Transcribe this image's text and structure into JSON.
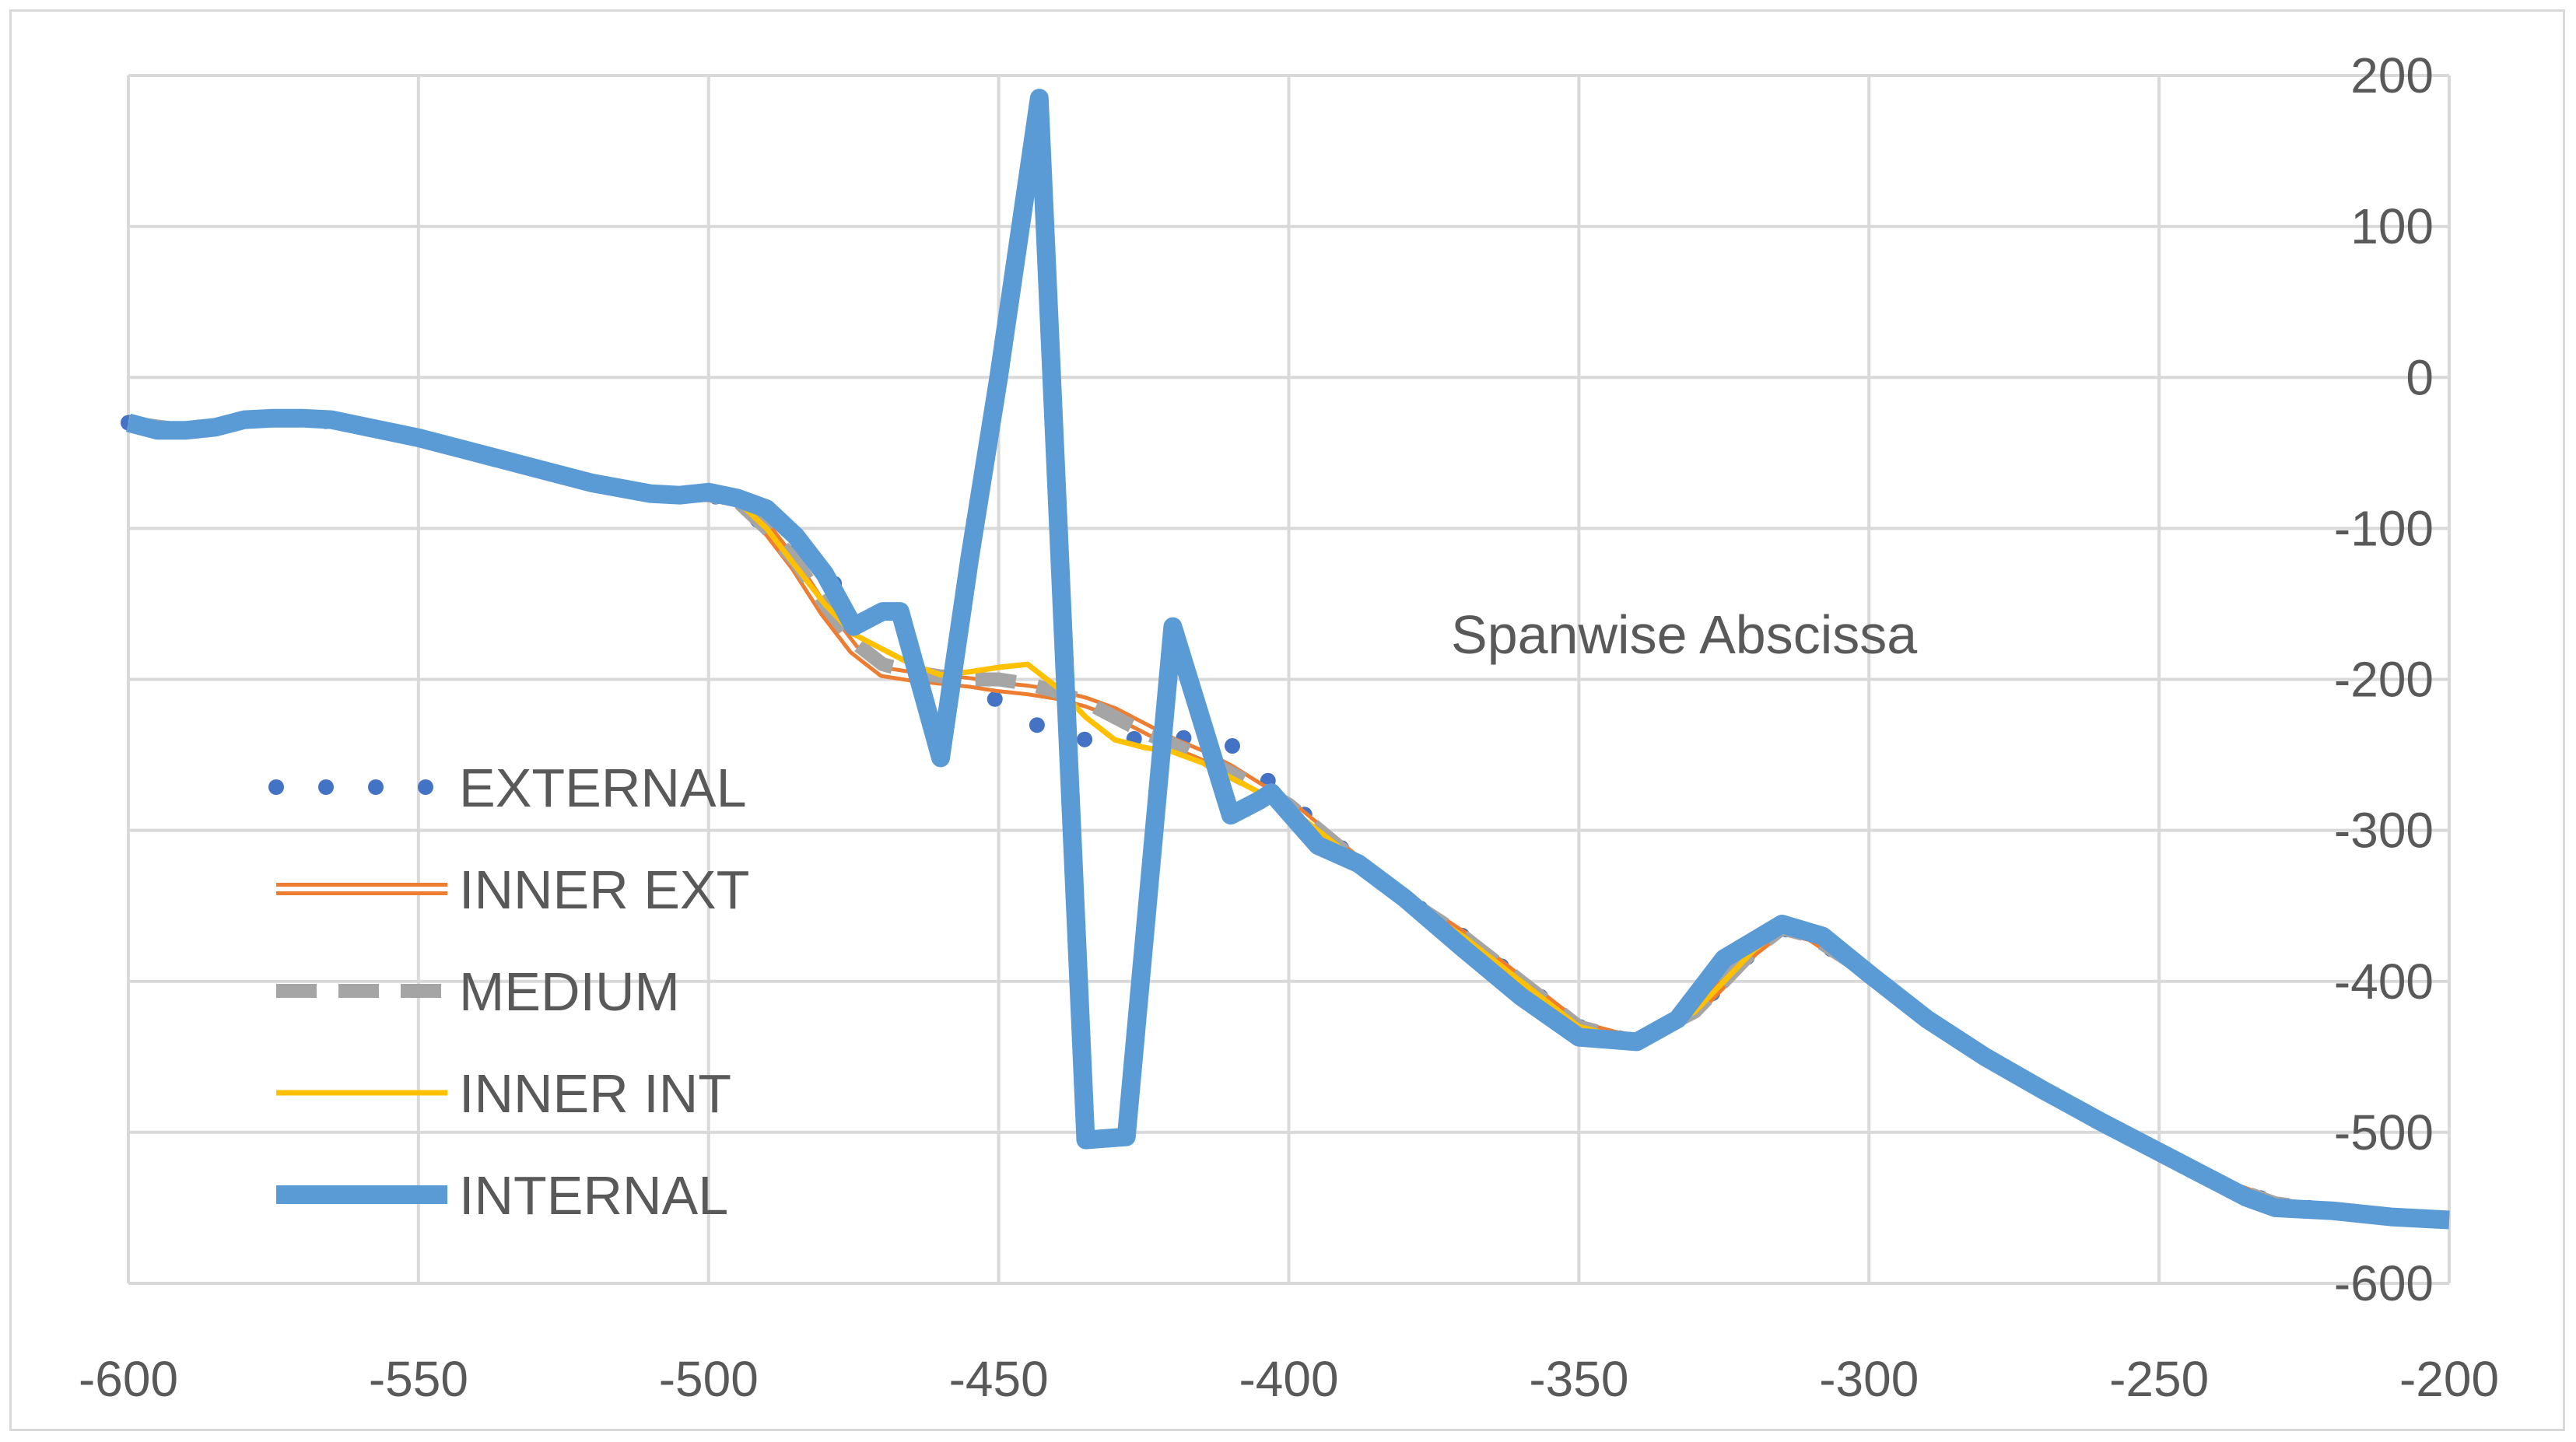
{
  "chart_data": {
    "type": "line",
    "title": "",
    "xlabel": "",
    "ylabel": "",
    "annotation": "Spanwise Abscissa",
    "xlim": [
      -600,
      -200
    ],
    "ylim": [
      -600,
      200
    ],
    "x_ticks": [
      -600,
      -550,
      -500,
      -450,
      -400,
      -350,
      -300,
      -250,
      -200
    ],
    "y_ticks": [
      -600,
      -500,
      -400,
      -300,
      -200,
      -100,
      0,
      100,
      200
    ],
    "x_tick_labels": [
      "-600",
      "-550",
      "-500",
      "-450",
      "-400",
      "-350",
      "-300",
      "-250",
      "-200"
    ],
    "y_tick_labels": [
      "-600",
      "-500",
      "-400",
      "-300",
      "-200",
      "-100",
      "0",
      "100",
      "200"
    ],
    "grid": true,
    "legend_position": "left",
    "series": [
      {
        "name": "EXTERNAL",
        "color": "#4472c4",
        "style": "dotted",
        "x": [
          -600,
          -590,
          -580,
          -570,
          -560,
          -550,
          -540,
          -530,
          -520,
          -510,
          -500,
          -495,
          -490,
          -485,
          -480,
          -475,
          -470,
          -465,
          -460,
          -455,
          -450,
          -445,
          -440,
          -435,
          -430,
          -425,
          -420,
          -415,
          -410,
          -405,
          -400,
          -390,
          -380,
          -370,
          -360,
          -350,
          -340,
          -330,
          -320,
          -315,
          -310,
          -300,
          -290,
          -280,
          -270,
          -260,
          -250,
          -240,
          -230,
          -220,
          -210,
          -200
        ],
        "y": [
          -30,
          -35,
          -28,
          -27,
          -32,
          -40,
          -50,
          -60,
          -70,
          -77,
          -78,
          -82,
          -100,
          -115,
          -130,
          -150,
          -165,
          -180,
          -190,
          -200,
          -215,
          -228,
          -235,
          -240,
          -238,
          -240,
          -238,
          -240,
          -243,
          -262,
          -280,
          -315,
          -345,
          -370,
          -400,
          -430,
          -440,
          -420,
          -380,
          -365,
          -370,
          -395,
          -425,
          -450,
          -472,
          -493,
          -513,
          -533,
          -547,
          -552,
          -556,
          -558
        ]
      },
      {
        "name": "INNER EXT",
        "color": "#ed7d31",
        "style": "double",
        "x": [
          -600,
          -590,
          -580,
          -570,
          -560,
          -550,
          -540,
          -530,
          -520,
          -510,
          -500,
          -495,
          -490,
          -485,
          -480,
          -475,
          -470,
          -465,
          -460,
          -455,
          -450,
          -445,
          -440,
          -435,
          -430,
          -425,
          -420,
          -415,
          -410,
          -405,
          -400,
          -390,
          -380,
          -370,
          -360,
          -350,
          -340,
          -330,
          -320,
          -315,
          -310,
          -300,
          -290,
          -280,
          -270,
          -260,
          -250,
          -240,
          -230,
          -220,
          -210,
          -200
        ],
        "y": [
          -30,
          -35,
          -28,
          -27,
          -32,
          -40,
          -50,
          -60,
          -70,
          -77,
          -78,
          -82,
          -100,
          -125,
          -155,
          -180,
          -195,
          -198,
          -200,
          -202,
          -205,
          -207,
          -210,
          -215,
          -222,
          -232,
          -242,
          -250,
          -260,
          -272,
          -283,
          -315,
          -345,
          -370,
          -400,
          -430,
          -440,
          -420,
          -380,
          -365,
          -370,
          -395,
          -425,
          -450,
          -472,
          -493,
          -513,
          -533,
          -547,
          -552,
          -556,
          -558
        ]
      },
      {
        "name": "MEDIUM",
        "color": "#a5a5a5",
        "style": "dashed",
        "x": [
          -600,
          -590,
          -580,
          -570,
          -560,
          -550,
          -540,
          -530,
          -520,
          -510,
          -500,
          -495,
          -490,
          -485,
          -480,
          -475,
          -470,
          -465,
          -460,
          -455,
          -450,
          -445,
          -440,
          -435,
          -430,
          -425,
          -420,
          -415,
          -410,
          -405,
          -400,
          -390,
          -380,
          -370,
          -360,
          -350,
          -340,
          -330,
          -320,
          -315,
          -310,
          -300,
          -290,
          -280,
          -270,
          -260,
          -250,
          -240,
          -230,
          -220,
          -210,
          -200
        ],
        "y": [
          -30,
          -35,
          -28,
          -27,
          -32,
          -40,
          -50,
          -60,
          -70,
          -77,
          -78,
          -82,
          -100,
          -122,
          -150,
          -175,
          -190,
          -195,
          -198,
          -200,
          -200,
          -203,
          -208,
          -215,
          -225,
          -235,
          -243,
          -252,
          -262,
          -272,
          -283,
          -315,
          -345,
          -370,
          -400,
          -430,
          -440,
          -420,
          -380,
          -365,
          -370,
          -395,
          -425,
          -450,
          -472,
          -493,
          -513,
          -533,
          -547,
          -552,
          -556,
          -558
        ]
      },
      {
        "name": "INNER INT",
        "color": "#ffc000",
        "style": "solid",
        "x": [
          -600,
          -590,
          -580,
          -570,
          -560,
          -550,
          -540,
          -530,
          -520,
          -510,
          -500,
          -495,
          -490,
          -485,
          -480,
          -475,
          -470,
          -465,
          -460,
          -455,
          -450,
          -445,
          -440,
          -435,
          -430,
          -425,
          -420,
          -415,
          -410,
          -405,
          -400,
          -390,
          -380,
          -370,
          -360,
          -350,
          -340,
          -330,
          -320,
          -315,
          -310,
          -300,
          -290,
          -280,
          -270,
          -260,
          -250,
          -240,
          -230,
          -220,
          -210,
          -200
        ],
        "y": [
          -30,
          -35,
          -28,
          -27,
          -32,
          -40,
          -50,
          -60,
          -70,
          -77,
          -78,
          -82,
          -100,
          -125,
          -150,
          -170,
          -180,
          -190,
          -197,
          -195,
          -192,
          -190,
          -205,
          -225,
          -240,
          -245,
          -248,
          -255,
          -265,
          -275,
          -285,
          -315,
          -345,
          -370,
          -400,
          -430,
          -440,
          -420,
          -380,
          -365,
          -370,
          -395,
          -425,
          -450,
          -472,
          -493,
          -513,
          -533,
          -547,
          -552,
          -556,
          -558
        ]
      },
      {
        "name": "INTERNAL",
        "color": "#5b9bd5",
        "style": "thick",
        "x": [
          -600,
          -595,
          -590,
          -585,
          -580,
          -575,
          -570,
          -565,
          -560,
          -550,
          -540,
          -530,
          -520,
          -510,
          -505,
          -500,
          -495,
          -490,
          -485,
          -480,
          -475,
          -470,
          -467,
          -460,
          -455,
          -450,
          -443,
          -435,
          -428,
          -420,
          -410,
          -405,
          -403,
          -395,
          -388,
          -380,
          -370,
          -360,
          -350,
          -340,
          -333,
          -325,
          -315,
          -308,
          -300,
          -290,
          -280,
          -270,
          -260,
          -250,
          -240,
          -235,
          -230,
          -220,
          -210,
          -200
        ],
        "y": [
          -30,
          -35,
          -35,
          -33,
          -28,
          -27,
          -27,
          -28,
          -32,
          -40,
          -50,
          -60,
          -70,
          -77,
          -78,
          -76,
          -80,
          -87,
          -105,
          -130,
          -165,
          -155,
          -155,
          -252,
          -120,
          0,
          185,
          -505,
          -503,
          -165,
          -290,
          -280,
          -275,
          -310,
          -322,
          -345,
          -378,
          -410,
          -437,
          -440,
          -425,
          -385,
          -362,
          -370,
          -395,
          -425,
          -450,
          -472,
          -493,
          -513,
          -533,
          -543,
          -550,
          -552,
          -556,
          -558
        ]
      }
    ]
  }
}
